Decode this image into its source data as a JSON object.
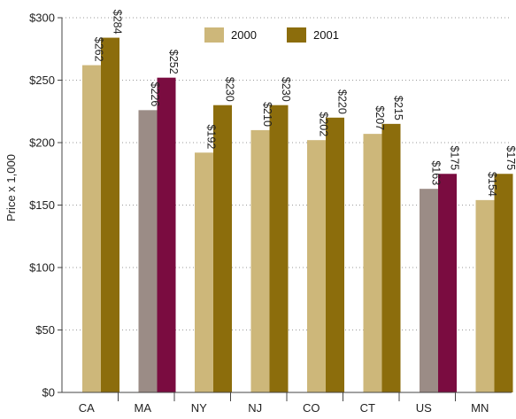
{
  "chart_data": {
    "type": "bar",
    "title": "",
    "xlabel": "",
    "ylabel": "Price x 1,000",
    "ylim": [
      0,
      300
    ],
    "yticks": [
      0,
      50,
      100,
      150,
      200,
      250,
      300
    ],
    "ytick_labels": [
      "$0",
      "$50",
      "$100",
      "$150",
      "$200",
      "$250",
      "$300"
    ],
    "categories": [
      "CA",
      "MA",
      "NY",
      "NJ",
      "CO",
      "CT",
      "US",
      "MN"
    ],
    "series": [
      {
        "name": "2000",
        "values": [
          262,
          226,
          192,
          210,
          202,
          207,
          163,
          154
        ],
        "labels": [
          "$262",
          "$226",
          "$192",
          "$210",
          "$202",
          "$207",
          "$163",
          "$154"
        ],
        "color": "#cdb77a",
        "highlight_color": "#9b8c86"
      },
      {
        "name": "2001",
        "values": [
          284,
          252,
          230,
          230,
          220,
          215,
          175,
          175
        ],
        "labels": [
          "$284",
          "$252",
          "$230",
          "$230",
          "$220",
          "$215",
          "$175",
          "$175"
        ],
        "color": "#8c6d0c",
        "highlight_color": "#7a0c40"
      }
    ],
    "highlighted_categories": [
      "MA",
      "US"
    ],
    "grid": "horizontal-dotted",
    "legend_position": "top-center"
  }
}
